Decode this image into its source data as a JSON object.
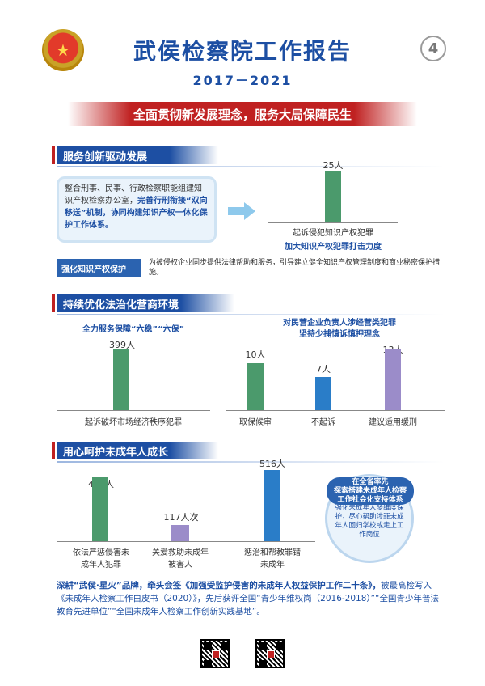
{
  "header": {
    "title": "武侯检察院工作报告",
    "years": "2017－2021",
    "page_number": "4",
    "banner": "全面贯彻新发展理念，服务大局保障民生"
  },
  "section1": {
    "heading": "服务创新驱动发展",
    "box_text_1": "整合刑事、民事、行政检察职能组建知识产权检察办公室，",
    "box_text_bold": "完善行刑衔接“双向移送”机制，协同构建知识产权一体化保护工作体系。",
    "bar_value_label": "25人",
    "bar_category": "起诉侵犯知识产权犯罪",
    "caption": "加大知识产权犯罪打击力度",
    "strip_tag": "强化知识产权保护",
    "strip_desc": "为被侵权企业同步提供法律帮助和服务，引导建立健全知识产权管理制度和商业秘密保护措施。"
  },
  "section2": {
    "heading": "持续优化法治化营商环境",
    "left_subtitle": "全力服务保障“六稳”“六保”",
    "left_bar_label": "399人",
    "left_category": "起诉破坏市场经济秩序犯罪",
    "right_subtitle_1": "对民营企业负责人涉经营类犯罪",
    "right_subtitle_2": "坚持少捕慎诉慎押理念",
    "bars": [
      {
        "label": "10人",
        "category": "取保候审"
      },
      {
        "label": "7人",
        "category": "不起诉"
      },
      {
        "label": "13人",
        "category": "建议适用缓刑"
      }
    ]
  },
  "section3": {
    "heading": "用心呵护未成年人成长",
    "bars": [
      {
        "label": "461人",
        "category_1": "依法严惩侵害未",
        "category_2": "成年人犯罪"
      },
      {
        "label": "117人次",
        "category_1": "关爱救助未成年",
        "category_2": "被害人"
      },
      {
        "label": "516人",
        "category_1": "惩治和帮教罪错",
        "category_2": "未成年"
      }
    ],
    "circle_title_1": "在全省率先",
    "circle_title_2": "探索搭建未成年人检察",
    "circle_title_3": "工作社会化支持体系",
    "circle_body": "强化未成年人多维度保护，尽心帮助涉罪未成年人回归学校或走上工作岗位"
  },
  "footer": {
    "lead": "深耕“武侯·星火”品牌，牵头会签《加强受监护侵害的未成年人权益保护工作二十条》，",
    "rest": "被最高检写入《未成年人检察工作白皮书（2020）》，先后获评全国“青少年维权岗（2016-2018）”“全国青少年普法教育先进单位”“全国未成年人检察工作创新实践基地”。"
  },
  "chart_data": [
    {
      "type": "bar",
      "categories": [
        "起诉侵犯知识产权犯罪"
      ],
      "values": [
        25
      ]
    },
    {
      "type": "bar",
      "categories": [
        "起诉破坏市场经济秩序犯罪"
      ],
      "values": [
        399
      ]
    },
    {
      "type": "bar",
      "categories": [
        "取保候审",
        "不起诉",
        "建议适用缓刑"
      ],
      "values": [
        10,
        7,
        13
      ]
    },
    {
      "type": "bar",
      "categories": [
        "依法严惩侵害未成年人犯罪",
        "关爱救助未成年被害人",
        "惩治和帮教罪错未成年"
      ],
      "values": [
        461,
        117,
        516
      ]
    }
  ],
  "colors": {
    "primary": "#1d4fa3",
    "accent": "#c02121",
    "green": "#4b9a6c",
    "blue": "#2a7dc8",
    "purple": "#9b8cc9"
  }
}
